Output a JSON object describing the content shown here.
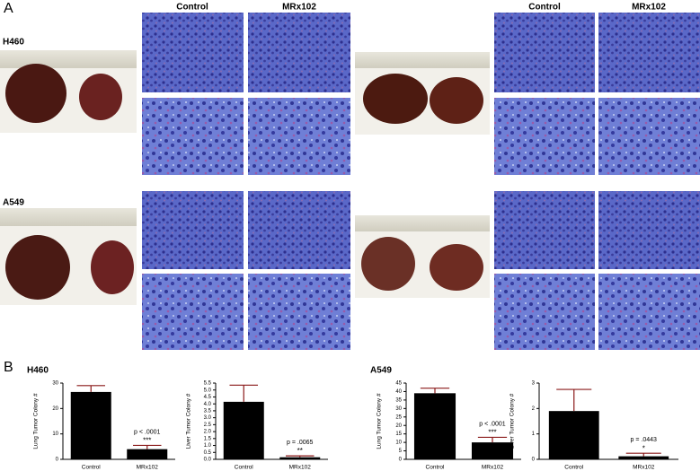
{
  "panel_labels": [
    "A",
    "B"
  ],
  "columns": [
    "Control",
    "MRx102",
    "Control",
    "MRx102"
  ],
  "cell_lines": [
    "H460",
    "A549"
  ],
  "chart_data": [
    {
      "type": "bar",
      "title": "H460",
      "y_label": "Lung Tumor Colony #",
      "categories": [
        "Control",
        "MRx102"
      ],
      "values": [
        26.5,
        4
      ],
      "errors": [
        2.5,
        1.5
      ],
      "color": "#000000",
      "error_color": "#8b1a1a",
      "ylim": [
        0,
        30
      ],
      "yticks": [
        0,
        10,
        20,
        30
      ],
      "annotations": [
        "p < .0001",
        "***"
      ]
    },
    {
      "type": "bar",
      "y_label": "Liver Tumor Colony #",
      "categories": [
        "Control",
        "MRx102"
      ],
      "values": [
        4.15,
        0.15
      ],
      "errors": [
        1.2,
        0.1
      ],
      "color": "#000000",
      "error_color": "#8b1a1a",
      "ylim": [
        0,
        5.5
      ],
      "yticks": [
        {
          "value": 0,
          "label": "0.0"
        },
        0.5,
        {
          "value": 1,
          "label": "1.0"
        },
        1.5,
        {
          "value": 2,
          "label": "2.0"
        },
        2.5,
        {
          "value": 3,
          "label": "3.0"
        },
        3.5,
        {
          "value": 4,
          "label": "4.0"
        },
        4.5,
        {
          "value": 5,
          "label": "5.0"
        },
        5.5
      ],
      "annotations": [
        "p = .0065",
        "**"
      ]
    },
    {
      "type": "bar",
      "title": "A549",
      "y_label": "Lung Tumor Colony #",
      "categories": [
        "Control",
        "MRx102"
      ],
      "values": [
        39,
        10
      ],
      "errors": [
        3,
        3
      ],
      "color": "#000000",
      "error_color": "#8b1a1a",
      "ylim": [
        0,
        45
      ],
      "yticks": [
        0,
        5,
        10,
        15,
        20,
        25,
        30,
        35,
        40,
        45
      ],
      "annotations": [
        "p < .0001",
        "***"
      ]
    },
    {
      "type": "bar",
      "y_label": "Liver Tumor Colony #",
      "categories": [
        "Control",
        "MRx102"
      ],
      "values": [
        1.9,
        0.12
      ],
      "errors": [
        0.85,
        0.12
      ],
      "color": "#000000",
      "error_color": "#8b1a1a",
      "ylim": [
        0,
        3
      ],
      "yticks": [
        0,
        1,
        2,
        3
      ],
      "annotations": [
        "p = .0443",
        "*"
      ]
    }
  ]
}
